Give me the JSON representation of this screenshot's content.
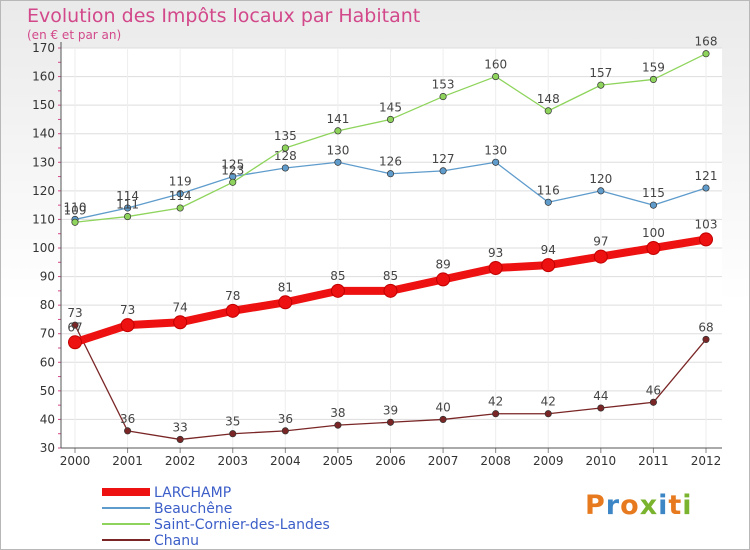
{
  "header": {
    "title": "Evolution des Impôts locaux par Habitant",
    "subtitle": "(en € et par an)"
  },
  "logo": {
    "text": "Proxiti",
    "colors": [
      "#e77a1f",
      "#3d86c6",
      "#e77a1f",
      "#7ab32e",
      "#3d86c6",
      "#e77a1f",
      "#7ab32e"
    ]
  },
  "chart_data": {
    "type": "line",
    "x": [
      "2000",
      "2001",
      "2002",
      "2003",
      "2004",
      "2005",
      "2006",
      "2007",
      "2008",
      "2009",
      "2010",
      "2011",
      "2012"
    ],
    "ylim": [
      30,
      170
    ],
    "yticks": [
      30,
      40,
      50,
      60,
      70,
      80,
      90,
      100,
      110,
      120,
      130,
      140,
      150,
      160,
      170
    ],
    "grid": true,
    "legend_position": "bottom-left",
    "series": [
      {
        "name": "LARCHAMP",
        "color": "#ee1111",
        "values": [
          67,
          73,
          74,
          78,
          81,
          85,
          85,
          89,
          93,
          94,
          97,
          100,
          103
        ],
        "emphasis": true
      },
      {
        "name": "Beauchêne",
        "color": "#5f9ccc",
        "values": [
          110,
          114,
          119,
          125,
          128,
          130,
          126,
          127,
          130,
          116,
          120,
          115,
          121
        ]
      },
      {
        "name": "Saint-Cornier-des-Landes",
        "color": "#8ed45c",
        "values": [
          109,
          111,
          114,
          123,
          135,
          141,
          145,
          153,
          160,
          148,
          157,
          159,
          168
        ]
      },
      {
        "name": "Chanu",
        "color": "#7a2626",
        "values": [
          73,
          36,
          33,
          35,
          36,
          38,
          39,
          40,
          42,
          42,
          44,
          46,
          68
        ]
      }
    ]
  }
}
